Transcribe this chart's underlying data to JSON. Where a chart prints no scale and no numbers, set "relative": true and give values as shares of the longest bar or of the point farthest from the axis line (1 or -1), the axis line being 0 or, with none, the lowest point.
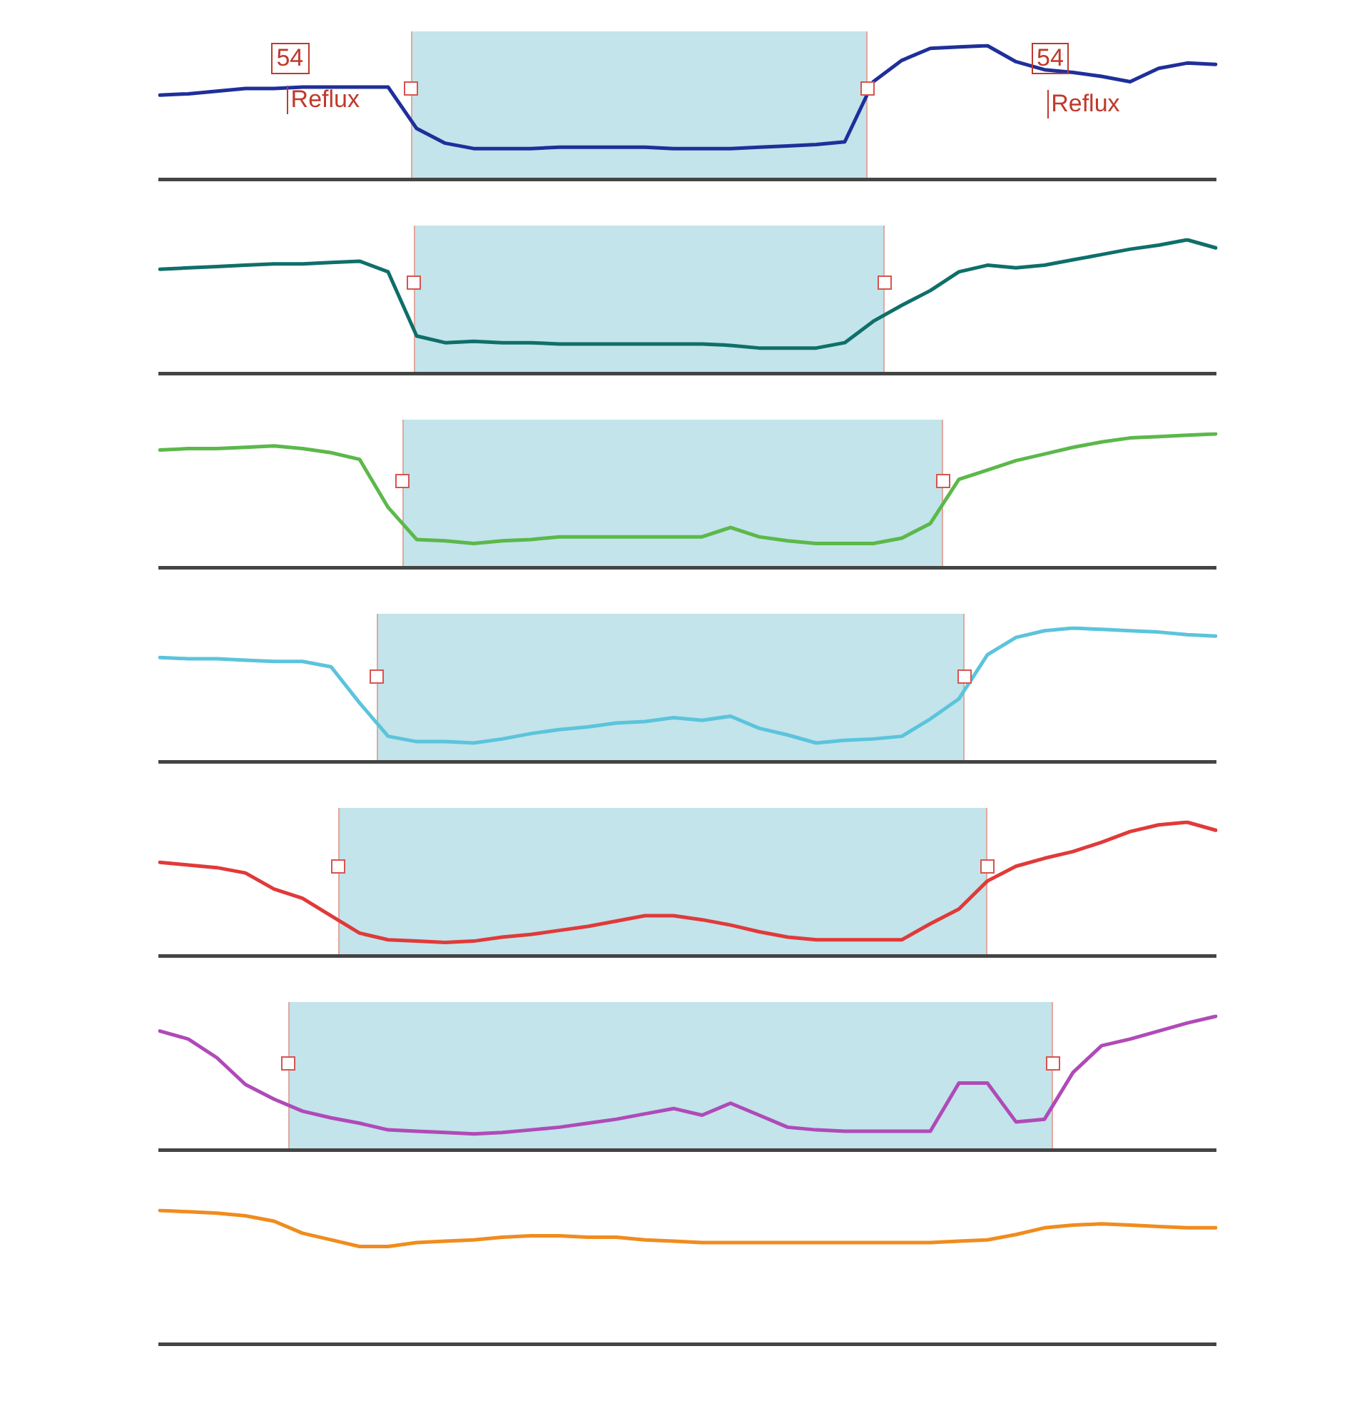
{
  "chart_data": [
    {
      "type": "line",
      "relative": true,
      "marker": "none",
      "categories": [
        null,
        null,
        null,
        null,
        null,
        null,
        null,
        null,
        null,
        null,
        null,
        null,
        null,
        null,
        null,
        null,
        null,
        null,
        null,
        null,
        null,
        null,
        null,
        null,
        null,
        null,
        null,
        null,
        null,
        null,
        null,
        null,
        null,
        null,
        null,
        null,
        null,
        null
      ],
      "annotations": [
        "54",
        "Reflux",
        "54",
        "Reflux"
      ],
      "series": [
        {
          "color": "#1f2f9a",
          "values": [
            0.63,
            0.64,
            0.66,
            0.68,
            0.68,
            0.69,
            0.69,
            0.69,
            0.69,
            0.38,
            0.27,
            0.23,
            0.23,
            0.23,
            0.24,
            0.24,
            0.24,
            0.24,
            0.23,
            0.23,
            0.23,
            0.24,
            0.25,
            0.26,
            0.28,
            0.73,
            0.89,
            0.98,
            0.99,
            1.0,
            0.88,
            0.82,
            0.8,
            0.77,
            0.73,
            0.83,
            0.87,
            0.86
          ]
        }
      ]
    },
    {
      "type": "line",
      "relative": true,
      "marker": "none",
      "categories": [
        null,
        null,
        null,
        null,
        null,
        null,
        null,
        null,
        null,
        null,
        null,
        null,
        null,
        null,
        null,
        null,
        null,
        null,
        null,
        null,
        null,
        null,
        null,
        null,
        null,
        null,
        null,
        null,
        null,
        null,
        null,
        null,
        null,
        null,
        null,
        null,
        null,
        null
      ],
      "series": [
        {
          "color": "#0f6f6a",
          "values": [
            0.78,
            0.79,
            0.8,
            0.81,
            0.82,
            0.82,
            0.83,
            0.84,
            0.76,
            0.28,
            0.23,
            0.24,
            0.23,
            0.23,
            0.22,
            0.22,
            0.22,
            0.22,
            0.22,
            0.22,
            0.21,
            0.19,
            0.19,
            0.19,
            0.23,
            0.39,
            0.51,
            0.62,
            0.76,
            0.81,
            0.79,
            0.81,
            0.85,
            0.89,
            0.93,
            0.96,
            1.0,
            0.94
          ]
        }
      ]
    },
    {
      "type": "line",
      "relative": true,
      "marker": "none",
      "categories": [
        null,
        null,
        null,
        null,
        null,
        null,
        null,
        null,
        null,
        null,
        null,
        null,
        null,
        null,
        null,
        null,
        null,
        null,
        null,
        null,
        null,
        null,
        null,
        null,
        null,
        null,
        null,
        null,
        null,
        null,
        null,
        null,
        null,
        null,
        null,
        null,
        null,
        null
      ],
      "series": [
        {
          "color": "#5cb84a",
          "values": [
            0.88,
            0.89,
            0.89,
            0.9,
            0.91,
            0.89,
            0.86,
            0.81,
            0.45,
            0.21,
            0.2,
            0.18,
            0.2,
            0.21,
            0.23,
            0.23,
            0.23,
            0.23,
            0.23,
            0.23,
            0.3,
            0.23,
            0.2,
            0.18,
            0.18,
            0.18,
            0.22,
            0.33,
            0.66,
            0.73,
            0.8,
            0.85,
            0.9,
            0.94,
            0.97,
            0.98,
            0.99,
            1.0
          ]
        }
      ]
    },
    {
      "type": "line",
      "relative": true,
      "marker": "none",
      "categories": [
        null,
        null,
        null,
        null,
        null,
        null,
        null,
        null,
        null,
        null,
        null,
        null,
        null,
        null,
        null,
        null,
        null,
        null,
        null,
        null,
        null,
        null,
        null,
        null,
        null,
        null,
        null,
        null,
        null,
        null,
        null,
        null,
        null,
        null,
        null,
        null,
        null,
        null
      ],
      "series": [
        {
          "color": "#5bc4dc",
          "values": [
            0.78,
            0.77,
            0.77,
            0.76,
            0.75,
            0.75,
            0.71,
            0.44,
            0.19,
            0.15,
            0.15,
            0.14,
            0.17,
            0.21,
            0.24,
            0.26,
            0.29,
            0.3,
            0.33,
            0.31,
            0.34,
            0.25,
            0.2,
            0.14,
            0.16,
            0.17,
            0.19,
            0.32,
            0.47,
            0.8,
            0.93,
            0.98,
            1.0,
            0.99,
            0.98,
            0.97,
            0.95,
            0.94
          ]
        }
      ]
    },
    {
      "type": "line",
      "relative": true,
      "marker": "none",
      "categories": [
        null,
        null,
        null,
        null,
        null,
        null,
        null,
        null,
        null,
        null,
        null,
        null,
        null,
        null,
        null,
        null,
        null,
        null,
        null,
        null,
        null,
        null,
        null,
        null,
        null,
        null,
        null,
        null,
        null,
        null,
        null,
        null,
        null,
        null,
        null,
        null,
        null,
        null
      ],
      "series": [
        {
          "color": "#e03a3a",
          "values": [
            0.7,
            0.68,
            0.66,
            0.62,
            0.5,
            0.43,
            0.3,
            0.17,
            0.12,
            0.11,
            0.1,
            0.11,
            0.14,
            0.16,
            0.19,
            0.22,
            0.26,
            0.3,
            0.3,
            0.27,
            0.23,
            0.18,
            0.14,
            0.12,
            0.12,
            0.12,
            0.12,
            0.24,
            0.35,
            0.56,
            0.67,
            0.73,
            0.78,
            0.85,
            0.93,
            0.98,
            1.0,
            0.94
          ]
        }
      ]
    },
    {
      "type": "line",
      "relative": true,
      "marker": "none",
      "categories": [
        null,
        null,
        null,
        null,
        null,
        null,
        null,
        null,
        null,
        null,
        null,
        null,
        null,
        null,
        null,
        null,
        null,
        null,
        null,
        null,
        null,
        null,
        null,
        null,
        null,
        null,
        null,
        null,
        null,
        null,
        null,
        null,
        null,
        null,
        null,
        null,
        null,
        null
      ],
      "series": [
        {
          "color": "#b04ab8",
          "values": [
            0.89,
            0.83,
            0.69,
            0.49,
            0.38,
            0.29,
            0.24,
            0.2,
            0.15,
            0.14,
            0.13,
            0.12,
            0.13,
            0.15,
            0.17,
            0.2,
            0.23,
            0.27,
            0.31,
            0.26,
            0.35,
            0.26,
            0.17,
            0.15,
            0.14,
            0.14,
            0.14,
            0.14,
            0.5,
            0.5,
            0.21,
            0.23,
            0.58,
            0.78,
            0.83,
            0.89,
            0.95,
            1.0
          ]
        }
      ]
    },
    {
      "type": "line",
      "relative": true,
      "marker": "none",
      "categories": [
        null,
        null,
        null,
        null,
        null,
        null,
        null,
        null,
        null,
        null,
        null,
        null,
        null,
        null,
        null,
        null,
        null,
        null,
        null,
        null,
        null,
        null,
        null,
        null,
        null,
        null,
        null,
        null,
        null,
        null,
        null,
        null,
        null,
        null,
        null,
        null,
        null,
        null
      ],
      "series": [
        {
          "color": "#f08c1e",
          "values": [
            1.0,
            0.99,
            0.98,
            0.96,
            0.92,
            0.83,
            0.78,
            0.73,
            0.73,
            0.76,
            0.77,
            0.78,
            0.8,
            0.81,
            0.81,
            0.8,
            0.8,
            0.78,
            0.77,
            0.76,
            0.76,
            0.76,
            0.76,
            0.76,
            0.76,
            0.76,
            0.76,
            0.76,
            0.77,
            0.78,
            0.82,
            0.87,
            0.89,
            0.9,
            0.89,
            0.88,
            0.87,
            0.87
          ]
        }
      ]
    }
  ]
}
